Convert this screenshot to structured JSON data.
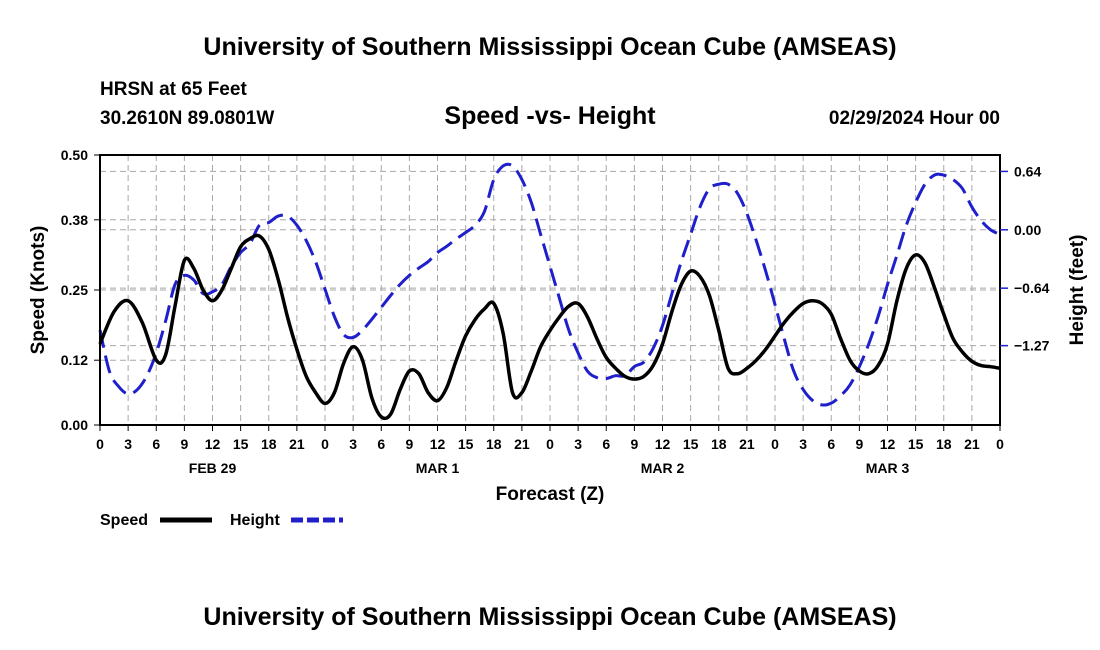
{
  "page": {
    "title_top": "University of Southern Mississippi Ocean Cube (AMSEAS)",
    "title_bottom": "University of Southern Mississippi Ocean Cube (AMSEAS)"
  },
  "station": {
    "name": "HRSN at 65 Feet",
    "coords": "30.2610N  89.0801W",
    "date": "02/29/2024 Hour 00"
  },
  "colors": {
    "speed": "#000000",
    "height": "#1f1fcc",
    "grid": "#a8a8a8"
  },
  "chart_data": {
    "type": "line",
    "title": "Speed -vs- Height",
    "xlabel": "Forecast (Z)",
    "ylabel": "Speed (Knots)",
    "y2label": "Height (feet)",
    "xlim": [
      0,
      96
    ],
    "ylim": [
      0,
      0.5
    ],
    "y2lim": [
      -2.14,
      0.82
    ],
    "y_ticks": [
      0.0,
      0.12,
      0.25,
      0.38,
      0.5
    ],
    "y_tick_labels": [
      "0.00",
      "0.12",
      "0.25",
      "0.38",
      "0.50"
    ],
    "y2_ticks": [
      0.64,
      0.0,
      -0.64,
      -1.27
    ],
    "y2_tick_labels": [
      "0.64",
      "0.00",
      "−0.64",
      "−1.27"
    ],
    "x_ticks": [
      0,
      3,
      6,
      9,
      12,
      15,
      18,
      21,
      24,
      27,
      30,
      33,
      36,
      39,
      42,
      45,
      48,
      51,
      54,
      57,
      60,
      63,
      66,
      69,
      72,
      75,
      78,
      81,
      84,
      87,
      90,
      93,
      96
    ],
    "x_tick_labels": [
      "0",
      "3",
      "6",
      "9",
      "12",
      "15",
      "18",
      "21",
      "0",
      "3",
      "6",
      "9",
      "12",
      "15",
      "18",
      "21",
      "0",
      "3",
      "6",
      "9",
      "12",
      "15",
      "18",
      "21",
      "0",
      "3",
      "6",
      "9",
      "12",
      "15",
      "18",
      "21",
      "0"
    ],
    "day_labels": [
      {
        "text": "FEB 29",
        "x": 12
      },
      {
        "text": "MAR 1",
        "x": 36
      },
      {
        "text": "MAR 2",
        "x": 60
      },
      {
        "text": "MAR 3",
        "x": 84
      }
    ],
    "series": [
      {
        "name": "Speed",
        "axis": "left",
        "style": "solid",
        "points": [
          [
            0,
            0.15
          ],
          [
            1.5,
            0.21
          ],
          [
            3,
            0.23
          ],
          [
            4.5,
            0.19
          ],
          [
            6,
            0.12
          ],
          [
            7,
            0.13
          ],
          [
            8,
            0.22
          ],
          [
            9,
            0.305
          ],
          [
            10,
            0.29
          ],
          [
            11,
            0.25
          ],
          [
            12,
            0.23
          ],
          [
            13,
            0.25
          ],
          [
            14,
            0.29
          ],
          [
            15,
            0.33
          ],
          [
            16,
            0.345
          ],
          [
            17,
            0.35
          ],
          [
            18,
            0.325
          ],
          [
            19,
            0.27
          ],
          [
            20,
            0.2
          ],
          [
            21,
            0.14
          ],
          [
            22,
            0.09
          ],
          [
            23,
            0.06
          ],
          [
            24,
            0.04
          ],
          [
            25,
            0.06
          ],
          [
            26,
            0.115
          ],
          [
            27,
            0.145
          ],
          [
            28,
            0.12
          ],
          [
            29,
            0.05
          ],
          [
            30,
            0.015
          ],
          [
            31,
            0.02
          ],
          [
            32,
            0.065
          ],
          [
            33,
            0.1
          ],
          [
            34,
            0.095
          ],
          [
            35,
            0.06
          ],
          [
            36,
            0.045
          ],
          [
            37,
            0.07
          ],
          [
            38,
            0.12
          ],
          [
            39,
            0.165
          ],
          [
            40,
            0.195
          ],
          [
            41,
            0.215
          ],
          [
            42,
            0.225
          ],
          [
            43,
            0.17
          ],
          [
            44,
            0.06
          ],
          [
            45,
            0.06
          ],
          [
            46,
            0.1
          ],
          [
            47,
            0.145
          ],
          [
            48,
            0.175
          ],
          [
            49,
            0.2
          ],
          [
            50,
            0.22
          ],
          [
            51,
            0.225
          ],
          [
            52,
            0.2
          ],
          [
            53,
            0.16
          ],
          [
            54,
            0.125
          ],
          [
            55,
            0.105
          ],
          [
            56,
            0.09
          ],
          [
            57,
            0.085
          ],
          [
            58,
            0.09
          ],
          [
            59,
            0.11
          ],
          [
            60,
            0.15
          ],
          [
            61,
            0.21
          ],
          [
            62,
            0.26
          ],
          [
            63,
            0.285
          ],
          [
            64,
            0.275
          ],
          [
            65,
            0.24
          ],
          [
            66,
            0.175
          ],
          [
            67,
            0.105
          ],
          [
            68,
            0.095
          ],
          [
            69,
            0.105
          ],
          [
            70,
            0.12
          ],
          [
            71,
            0.14
          ],
          [
            72,
            0.165
          ],
          [
            73,
            0.19
          ],
          [
            74,
            0.21
          ],
          [
            75,
            0.225
          ],
          [
            76,
            0.23
          ],
          [
            77,
            0.225
          ],
          [
            78,
            0.205
          ],
          [
            79,
            0.16
          ],
          [
            80,
            0.12
          ],
          [
            81,
            0.1
          ],
          [
            82,
            0.095
          ],
          [
            83,
            0.11
          ],
          [
            84,
            0.15
          ],
          [
            85,
            0.23
          ],
          [
            86,
            0.29
          ],
          [
            87,
            0.315
          ],
          [
            88,
            0.3
          ],
          [
            89,
            0.255
          ],
          [
            90,
            0.205
          ],
          [
            91,
            0.16
          ],
          [
            92,
            0.135
          ],
          [
            93,
            0.118
          ],
          [
            94,
            0.11
          ],
          [
            95,
            0.108
          ],
          [
            96,
            0.105
          ]
        ]
      },
      {
        "name": "Height",
        "axis": "right",
        "style": "dashed",
        "points": [
          [
            0,
            -1.1
          ],
          [
            1,
            -1.55
          ],
          [
            2,
            -1.72
          ],
          [
            3,
            -1.8
          ],
          [
            4,
            -1.75
          ],
          [
            5,
            -1.6
          ],
          [
            6,
            -1.35
          ],
          [
            7,
            -1.0
          ],
          [
            8,
            -0.6
          ],
          [
            9,
            -0.5
          ],
          [
            10,
            -0.55
          ],
          [
            11,
            -0.7
          ],
          [
            12,
            -0.68
          ],
          [
            13,
            -0.6
          ],
          [
            14,
            -0.4
          ],
          [
            15,
            -0.25
          ],
          [
            16,
            -0.15
          ],
          [
            17,
            0.05
          ],
          [
            18,
            0.08
          ],
          [
            19,
            0.15
          ],
          [
            20,
            0.15
          ],
          [
            21,
            0.05
          ],
          [
            22,
            -0.12
          ],
          [
            23,
            -0.35
          ],
          [
            24,
            -0.65
          ],
          [
            25,
            -0.95
          ],
          [
            26,
            -1.15
          ],
          [
            27,
            -1.18
          ],
          [
            28,
            -1.1
          ],
          [
            29,
            -0.98
          ],
          [
            30,
            -0.85
          ],
          [
            31,
            -0.72
          ],
          [
            32,
            -0.6
          ],
          [
            33,
            -0.5
          ],
          [
            34,
            -0.42
          ],
          [
            35,
            -0.35
          ],
          [
            36,
            -0.25
          ],
          [
            37,
            -0.18
          ],
          [
            38,
            -0.1
          ],
          [
            39,
            -0.03
          ],
          [
            40,
            0.05
          ],
          [
            41,
            0.2
          ],
          [
            42,
            0.55
          ],
          [
            43,
            0.7
          ],
          [
            44,
            0.7
          ],
          [
            45,
            0.55
          ],
          [
            46,
            0.3
          ],
          [
            47,
            -0.05
          ],
          [
            48,
            -0.4
          ],
          [
            49,
            -0.75
          ],
          [
            50,
            -1.1
          ],
          [
            51,
            -1.35
          ],
          [
            52,
            -1.55
          ],
          [
            53,
            -1.62
          ],
          [
            54,
            -1.63
          ],
          [
            55,
            -1.6
          ],
          [
            56,
            -1.6
          ],
          [
            57,
            -1.5
          ],
          [
            58,
            -1.45
          ],
          [
            59,
            -1.3
          ],
          [
            60,
            -1.05
          ],
          [
            61,
            -0.7
          ],
          [
            62,
            -0.35
          ],
          [
            63,
            -0.05
          ],
          [
            64,
            0.25
          ],
          [
            65,
            0.45
          ],
          [
            66,
            0.5
          ],
          [
            67,
            0.5
          ],
          [
            68,
            0.4
          ],
          [
            69,
            0.18
          ],
          [
            70,
            -0.12
          ],
          [
            71,
            -0.45
          ],
          [
            72,
            -0.82
          ],
          [
            73,
            -1.2
          ],
          [
            74,
            -1.55
          ],
          [
            75,
            -1.75
          ],
          [
            76,
            -1.87
          ],
          [
            77,
            -1.92
          ],
          [
            78,
            -1.9
          ],
          [
            79,
            -1.82
          ],
          [
            80,
            -1.7
          ],
          [
            81,
            -1.5
          ],
          [
            82,
            -1.25
          ],
          [
            83,
            -0.95
          ],
          [
            84,
            -0.6
          ],
          [
            85,
            -0.28
          ],
          [
            86,
            0.05
          ],
          [
            87,
            0.3
          ],
          [
            88,
            0.5
          ],
          [
            89,
            0.6
          ],
          [
            90,
            0.6
          ],
          [
            91,
            0.55
          ],
          [
            92,
            0.45
          ],
          [
            93,
            0.25
          ],
          [
            94,
            0.1
          ],
          [
            95,
            0.0
          ],
          [
            96,
            -0.05
          ]
        ]
      }
    ],
    "legend": [
      {
        "label": "Speed",
        "style": "solid"
      },
      {
        "label": "Height",
        "style": "dashed"
      }
    ]
  }
}
